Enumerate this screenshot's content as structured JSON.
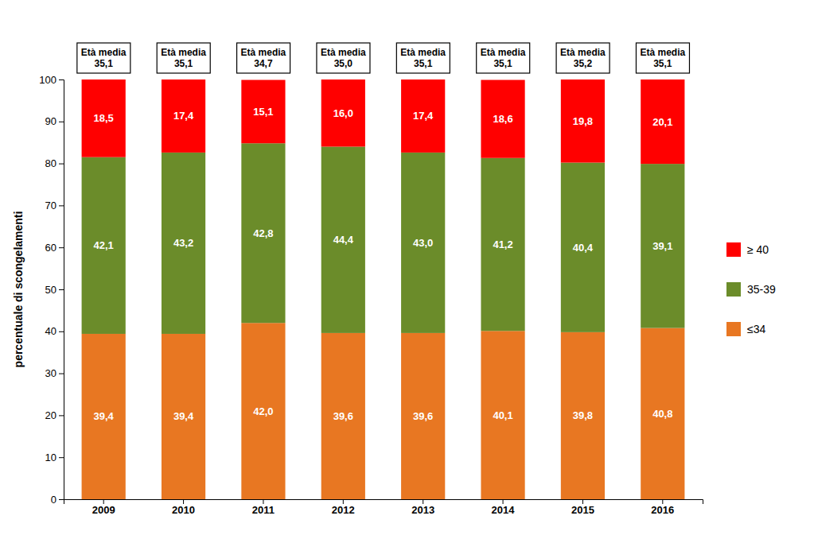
{
  "chart_data": {
    "type": "bar",
    "stacked": true,
    "data_labels": true,
    "grid": false,
    "legend": "right",
    "y_label": "percentuale di scongelamenti",
    "categories": [
      "2009",
      "2010",
      "2011",
      "2012",
      "2013",
      "2014",
      "2015",
      "2016"
    ],
    "series": [
      {
        "name": "≤34",
        "color": "#E87722",
        "values": [
          39.4,
          39.4,
          42.0,
          39.6,
          39.6,
          40.1,
          39.8,
          40.8
        ],
        "value_labels": [
          "39,4",
          "39,4",
          "42,0",
          "39,6",
          "39,6",
          "40,1",
          "39,8",
          "40,8"
        ]
      },
      {
        "name": "35-39",
        "color": "#6B8C2A",
        "values": [
          42.1,
          43.2,
          42.8,
          44.4,
          43.0,
          41.2,
          40.4,
          39.1
        ],
        "value_labels": [
          "42,1",
          "43,2",
          "42,8",
          "44,4",
          "43,0",
          "41,2",
          "40,4",
          "39,1"
        ]
      },
      {
        "name": "≥ 40",
        "color": "#FF0000",
        "values": [
          18.5,
          17.4,
          15.1,
          16.0,
          17.4,
          18.6,
          19.8,
          20.1
        ],
        "value_labels": [
          "18,5",
          "17,4",
          "15,1",
          "16,0",
          "17,4",
          "18,6",
          "19,8",
          "20,1"
        ]
      }
    ],
    "ylim": [
      0,
      100
    ],
    "yticks": [
      0,
      10,
      20,
      30,
      40,
      50,
      60,
      70,
      80,
      90,
      100
    ],
    "annotations": [
      {
        "x": "2009",
        "text": "Età media\n35,1"
      },
      {
        "x": "2010",
        "text": "Età media\n35,1"
      },
      {
        "x": "2011",
        "text": "Età media\n34,7"
      },
      {
        "x": "2012",
        "text": "Età media\n35,0"
      },
      {
        "x": "2013",
        "text": "Età media\n35,1"
      },
      {
        "x": "2014",
        "text": "Età media\n35,1"
      },
      {
        "x": "2015",
        "text": "Età media\n35,2"
      },
      {
        "x": "2016",
        "text": "Età media\n35,1"
      }
    ]
  }
}
